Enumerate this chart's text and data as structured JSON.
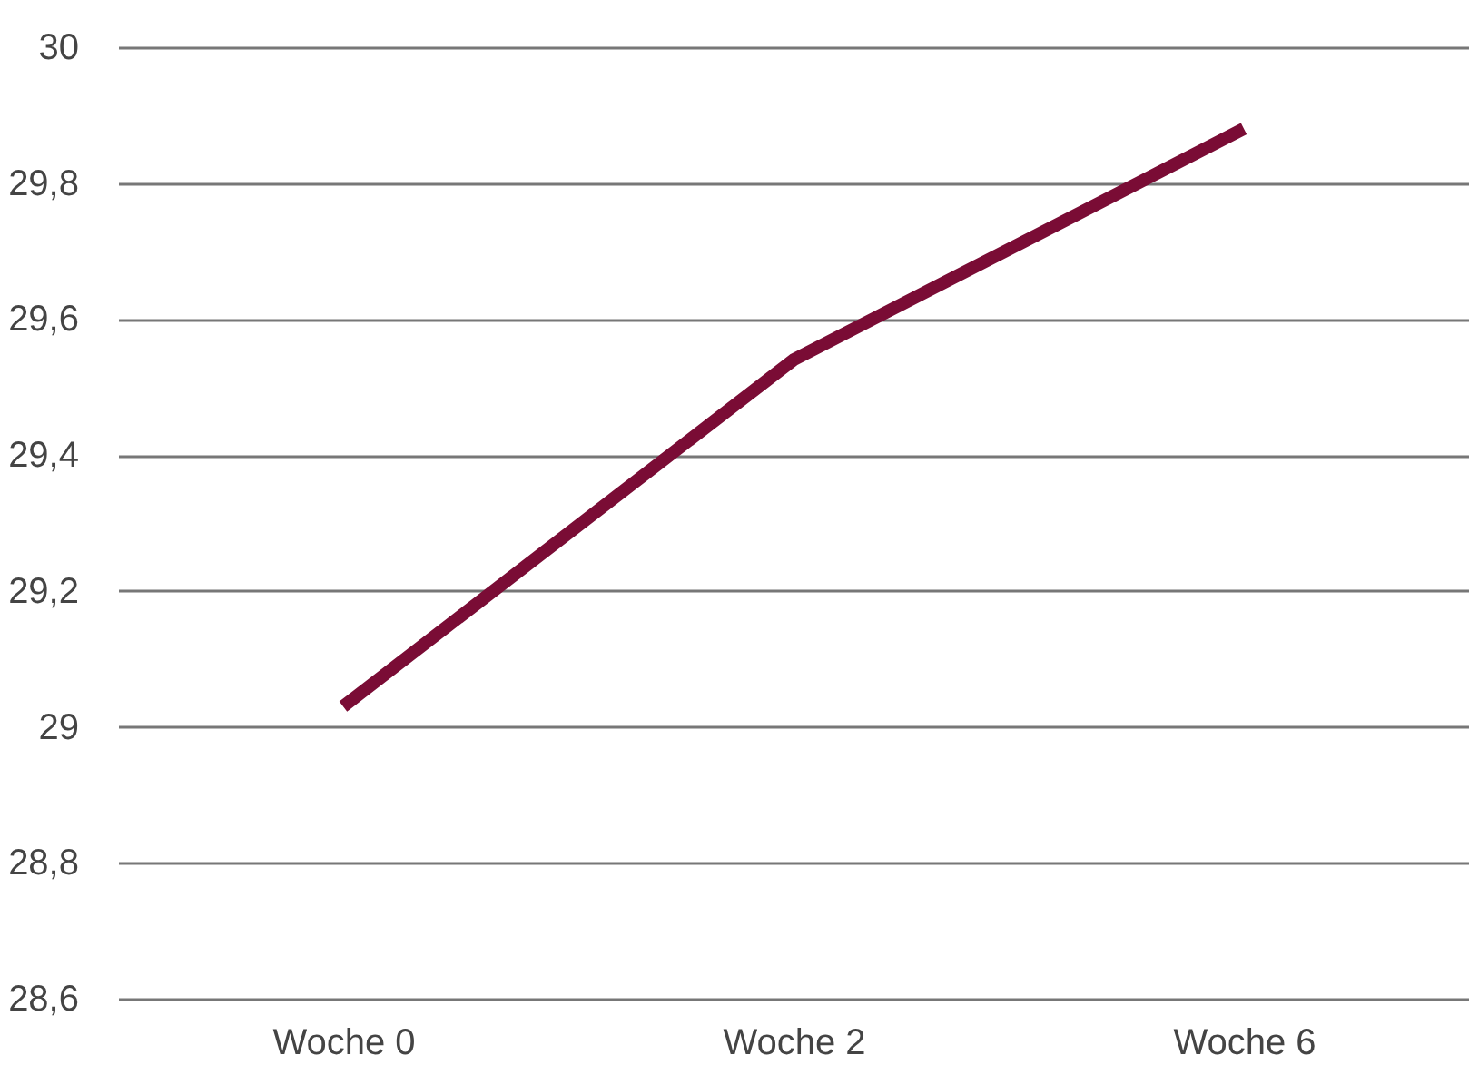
{
  "chart_data": {
    "type": "line",
    "categories": [
      "Woche 0",
      "Woche 2",
      "Woche 6"
    ],
    "series": [
      {
        "color": "#7a0c35",
        "values": [
          29.03,
          29.54,
          29.88
        ]
      }
    ],
    "ylim": [
      28.6,
      30
    ],
    "yticks": [
      {
        "value": 28.6,
        "label": "28,6"
      },
      {
        "value": 28.8,
        "label": "28,8"
      },
      29,
      {
        "value": 29.2,
        "label": "29,2"
      },
      {
        "value": 29.4,
        "label": "29,4"
      },
      {
        "value": 29.6,
        "label": "29,6"
      },
      {
        "value": 29.8,
        "label": "29,8"
      },
      30
    ],
    "grid": "y",
    "marker": "none",
    "line_style": "solid"
  }
}
